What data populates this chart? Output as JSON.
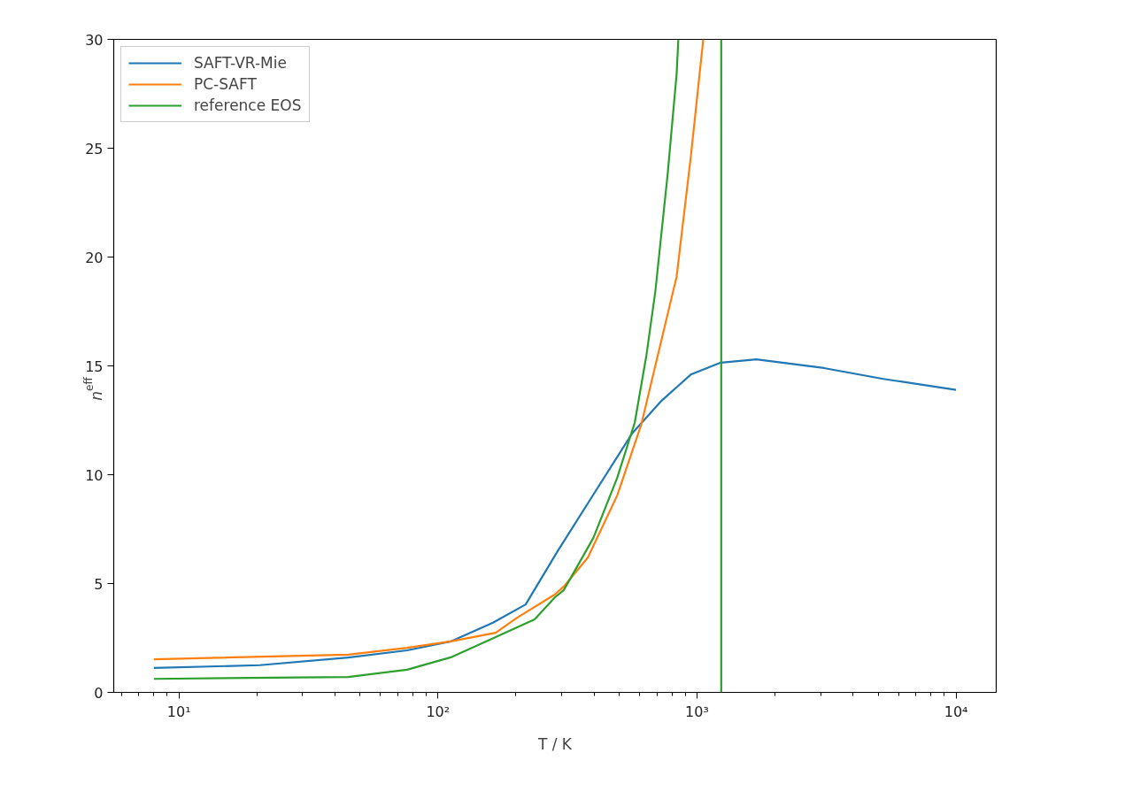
{
  "chart_data": {
    "type": "line",
    "xlabel": "T / K",
    "ylabel": "n$_{eff}$",
    "log": "x",
    "grid": false,
    "legend": "top left",
    "marker": "none",
    "line_style": "solid",
    "xlim": [
      5.6,
      14290
    ],
    "ylim": [
      0,
      30
    ],
    "xticks": [
      {
        "value": 6,
        "label": null
      },
      {
        "value": 7,
        "label": null
      },
      {
        "value": 8,
        "label": null
      },
      {
        "value": 9,
        "label": null
      },
      {
        "value": 10,
        "label": "10¹"
      },
      {
        "value": 20,
        "label": null
      },
      {
        "value": 30,
        "label": null
      },
      {
        "value": 40,
        "label": null
      },
      {
        "value": 50,
        "label": null
      },
      {
        "value": 60,
        "label": null
      },
      {
        "value": 70,
        "label": null
      },
      {
        "value": 80,
        "label": null
      },
      {
        "value": 90,
        "label": null
      },
      {
        "value": 100,
        "label": "10²"
      },
      {
        "value": 200,
        "label": null
      },
      {
        "value": 300,
        "label": null
      },
      {
        "value": 400,
        "label": null
      },
      {
        "value": 500,
        "label": null
      },
      {
        "value": 600,
        "label": null
      },
      {
        "value": 700,
        "label": null
      },
      {
        "value": 800,
        "label": null
      },
      {
        "value": 900,
        "label": null
      },
      {
        "value": 1000,
        "label": "10³"
      },
      {
        "value": 2000,
        "label": null
      },
      {
        "value": 3000,
        "label": null
      },
      {
        "value": 4000,
        "label": null
      },
      {
        "value": 5000,
        "label": null
      },
      {
        "value": 6000,
        "label": null
      },
      {
        "value": 7000,
        "label": null
      },
      {
        "value": 8000,
        "label": null
      },
      {
        "value": 9000,
        "label": null
      },
      {
        "value": 10000,
        "label": "10⁴"
      }
    ],
    "yticks": [
      0,
      5,
      10,
      15,
      20,
      25,
      30
    ],
    "series": [
      {
        "name": "SAFT-VR-Mie",
        "color": "#1f77b4",
        "x": [
          8,
          20.5,
          45,
          76,
          112,
          163,
          218,
          290,
          410,
          562,
          730,
          946,
          1236,
          1694,
          3090,
          5240,
          10000
        ],
        "values": [
          1.12,
          1.25,
          1.6,
          1.93,
          2.34,
          3.2,
          4.04,
          6.5,
          9.33,
          11.9,
          13.4,
          14.6,
          15.15,
          15.3,
          14.9,
          14.4,
          13.9
        ]
      },
      {
        "name": "PC-SAFT",
        "color": "#ff7f0e",
        "x": [
          8,
          45,
          76,
          112,
          167,
          202,
          283,
          306,
          379,
          492,
          609,
          690,
          834,
          946,
          1057
        ],
        "values": [
          1.52,
          1.73,
          2.05,
          2.34,
          2.74,
          3.43,
          4.5,
          4.86,
          6.2,
          9.05,
          12.3,
          15.0,
          19.1,
          24.6,
          30
        ]
      },
      {
        "name": "reference EOS",
        "color": "#2ca02c",
        "x": [
          8,
          45,
          76,
          112,
          167,
          236,
          283,
          306,
          398,
          492,
          575,
          638,
          690,
          770,
          834,
          847
        ],
        "values": [
          0.62,
          0.71,
          1.04,
          1.61,
          2.54,
          3.35,
          4.37,
          4.7,
          7.1,
          9.86,
          12.4,
          15.5,
          18.4,
          23.8,
          28.4,
          30
        ]
      }
    ],
    "ref_lines": [
      {
        "axis": "x",
        "value": 1240,
        "label": null,
        "color": "#2ca02c"
      }
    ]
  }
}
